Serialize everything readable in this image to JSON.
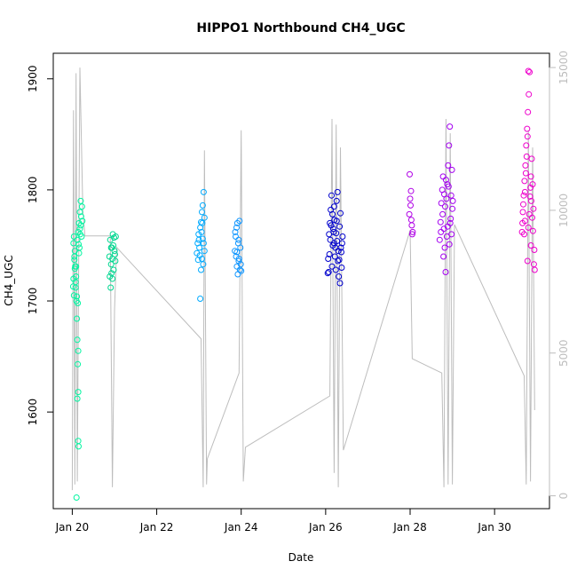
{
  "chart_data": {
    "type": "scatter",
    "title": "HIPPO1 Northbound CH4_UGC",
    "xlabel": "Date",
    "ylabel": "CH4_UGC",
    "x_ticks": [
      "Jan 20",
      "Jan 22",
      "Jan 24",
      "Jan 26",
      "Jan 28",
      "Jan 30"
    ],
    "x_tick_days": [
      20,
      22,
      24,
      26,
      28,
      30
    ],
    "xlim_days": [
      19.55,
      31.3
    ],
    "ylim": [
      1513,
      1923
    ],
    "y_ticks": [
      1600,
      1700,
      1800,
      1900
    ],
    "secondary_y": {
      "color": "#bdbdbd",
      "ylim": [
        -450,
        15500
      ],
      "ticks": [
        0,
        5000,
        10000,
        15000
      ],
      "series": "altitude",
      "trace": [
        [
          20.0,
          200
        ],
        [
          20.03,
          13500
        ],
        [
          20.06,
          400
        ],
        [
          20.09,
          14800
        ],
        [
          20.12,
          500
        ],
        [
          20.18,
          15000
        ],
        [
          20.25,
          10000
        ],
        [
          20.3,
          9100
        ],
        [
          20.6,
          9100
        ],
        [
          20.9,
          9100
        ],
        [
          20.95,
          300
        ],
        [
          21.0,
          6500
        ],
        [
          21.05,
          8700
        ],
        [
          23.05,
          5500
        ],
        [
          23.1,
          300
        ],
        [
          23.13,
          12100
        ],
        [
          23.18,
          400
        ],
        [
          23.2,
          1300
        ],
        [
          23.95,
          4300
        ],
        [
          24.0,
          12800
        ],
        [
          24.05,
          500
        ],
        [
          24.1,
          1700
        ],
        [
          26.1,
          3500
        ],
        [
          26.15,
          13200
        ],
        [
          26.2,
          800
        ],
        [
          26.25,
          13000
        ],
        [
          26.3,
          300
        ],
        [
          26.35,
          12200
        ],
        [
          26.42,
          1600
        ],
        [
          28.0,
          9300
        ],
        [
          28.05,
          4800
        ],
        [
          28.75,
          4300
        ],
        [
          28.8,
          300
        ],
        [
          28.85,
          13200
        ],
        [
          28.9,
          400
        ],
        [
          28.95,
          12700
        ],
        [
          29.0,
          400
        ],
        [
          29.05,
          9500
        ],
        [
          30.7,
          4200
        ],
        [
          30.75,
          400
        ],
        [
          30.8,
          12800
        ],
        [
          30.85,
          500
        ],
        [
          30.9,
          12200
        ],
        [
          30.95,
          3000
        ]
      ]
    },
    "series": [
      {
        "color": "#00f5a0",
        "values": [
          [
            20.02,
            1713
          ],
          [
            20.03,
            1720
          ],
          [
            20.04,
            1705
          ],
          [
            20.05,
            1737
          ],
          [
            20.06,
            1745
          ],
          [
            20.07,
            1731
          ],
          [
            20.08,
            1712
          ],
          [
            20.09,
            1722
          ],
          [
            20.1,
            1700
          ],
          [
            20.11,
            1684
          ],
          [
            20.12,
            1665
          ],
          [
            20.13,
            1643
          ],
          [
            20.14,
            1618
          ],
          [
            20.14,
            1574
          ],
          [
            20.15,
            1569
          ],
          [
            20.1,
            1523
          ],
          [
            20.12,
            1755
          ],
          [
            20.14,
            1762
          ],
          [
            20.16,
            1770
          ],
          [
            20.18,
            1780
          ],
          [
            20.2,
            1790
          ],
          [
            20.22,
            1758
          ],
          [
            20.24,
            1772
          ],
          [
            20.09,
            1731
          ],
          [
            20.11,
            1704
          ],
          [
            20.17,
            1748
          ],
          [
            20.19,
            1760
          ],
          [
            20.03,
            1752
          ],
          [
            20.05,
            1740
          ],
          [
            20.13,
            1698
          ],
          [
            20.21,
            1776
          ],
          [
            20.23,
            1785
          ],
          [
            20.06,
            1729
          ],
          [
            20.08,
            1717
          ],
          [
            20.15,
            1751
          ],
          [
            20.18,
            1765
          ],
          [
            20.04,
            1758
          ],
          [
            20.16,
            1743
          ],
          [
            20.2,
            1768
          ],
          [
            20.12,
            1612
          ],
          [
            20.14,
            1655
          ]
        ]
      },
      {
        "color": "#00d790",
        "values": [
          [
            20.88,
            1740
          ],
          [
            20.9,
            1755
          ],
          [
            20.92,
            1733
          ],
          [
            20.94,
            1748
          ],
          [
            20.96,
            1760
          ],
          [
            20.98,
            1728
          ],
          [
            21.0,
            1745
          ],
          [
            21.02,
            1736
          ],
          [
            20.91,
            1712
          ],
          [
            20.93,
            1725
          ],
          [
            20.95,
            1738
          ],
          [
            20.97,
            1750
          ],
          [
            20.99,
            1757
          ],
          [
            21.01,
            1742
          ],
          [
            20.89,
            1722
          ],
          [
            21.03,
            1758
          ],
          [
            20.95,
            1720
          ],
          [
            20.92,
            1748
          ]
        ]
      },
      {
        "color": "#00aaff",
        "values": [
          [
            22.95,
            1743
          ],
          [
            22.97,
            1752
          ],
          [
            22.99,
            1760
          ],
          [
            23.01,
            1748
          ],
          [
            23.03,
            1766
          ],
          [
            23.05,
            1771
          ],
          [
            23.07,
            1780
          ],
          [
            23.09,
            1786
          ],
          [
            23.11,
            1798
          ],
          [
            23.13,
            1775
          ],
          [
            23.03,
            1702
          ],
          [
            23.05,
            1728
          ],
          [
            23.07,
            1738
          ],
          [
            23.09,
            1756
          ],
          [
            23.11,
            1752
          ],
          [
            23.13,
            1745
          ],
          [
            22.98,
            1737
          ],
          [
            23.0,
            1755
          ],
          [
            23.02,
            1741
          ],
          [
            23.06,
            1762
          ],
          [
            23.1,
            1733
          ],
          [
            23.08,
            1770
          ]
        ]
      },
      {
        "color": "#1096ff",
        "values": [
          [
            23.85,
            1745
          ],
          [
            23.87,
            1758
          ],
          [
            23.89,
            1766
          ],
          [
            23.91,
            1770
          ],
          [
            23.93,
            1752
          ],
          [
            23.95,
            1738
          ],
          [
            23.97,
            1728
          ],
          [
            23.99,
            1733
          ],
          [
            23.88,
            1740
          ],
          [
            23.9,
            1731
          ],
          [
            23.92,
            1724
          ],
          [
            23.94,
            1755
          ],
          [
            23.96,
            1772
          ],
          [
            23.98,
            1748
          ],
          [
            23.86,
            1762
          ],
          [
            23.9,
            1744
          ],
          [
            23.94,
            1736
          ],
          [
            24.0,
            1727
          ]
        ]
      },
      {
        "color": "#0000cc",
        "values": [
          [
            26.05,
            1725
          ],
          [
            26.08,
            1760
          ],
          [
            26.1,
            1770
          ],
          [
            26.12,
            1782
          ],
          [
            26.14,
            1795
          ],
          [
            26.16,
            1778
          ],
          [
            26.18,
            1765
          ],
          [
            26.2,
            1752
          ],
          [
            26.22,
            1740
          ],
          [
            26.24,
            1728
          ],
          [
            26.26,
            1790
          ],
          [
            26.28,
            1798
          ],
          [
            26.3,
            1745
          ],
          [
            26.32,
            1737
          ],
          [
            26.34,
            1716
          ],
          [
            26.36,
            1748
          ],
          [
            26.38,
            1730
          ],
          [
            26.4,
            1758
          ],
          [
            26.09,
            1742
          ],
          [
            26.11,
            1755
          ],
          [
            26.13,
            1768
          ],
          [
            26.15,
            1731
          ],
          [
            26.17,
            1750
          ],
          [
            26.19,
            1762
          ],
          [
            26.21,
            1773
          ],
          [
            26.23,
            1748
          ],
          [
            26.25,
            1761
          ],
          [
            26.27,
            1754
          ],
          [
            26.29,
            1736
          ],
          [
            26.31,
            1722
          ],
          [
            26.33,
            1767
          ],
          [
            26.35,
            1779
          ],
          [
            26.07,
            1726
          ],
          [
            26.37,
            1744
          ],
          [
            26.39,
            1752
          ],
          [
            26.06,
            1738
          ],
          [
            26.2,
            1785
          ],
          [
            26.26,
            1772
          ]
        ]
      },
      {
        "color": "#b000e6",
        "values": [
          [
            27.98,
            1778
          ],
          [
            28.0,
            1792
          ],
          [
            28.02,
            1799
          ],
          [
            28.04,
            1768
          ],
          [
            28.06,
            1762
          ],
          [
            27.99,
            1814
          ],
          [
            28.01,
            1786
          ],
          [
            28.03,
            1773
          ],
          [
            28.05,
            1760
          ]
        ]
      },
      {
        "color": "#a400f0",
        "values": [
          [
            28.7,
            1755
          ],
          [
            28.72,
            1771
          ],
          [
            28.74,
            1788
          ],
          [
            28.76,
            1800
          ],
          [
            28.78,
            1812
          ],
          [
            28.8,
            1765
          ],
          [
            28.82,
            1748
          ],
          [
            28.84,
            1726
          ],
          [
            28.86,
            1792
          ],
          [
            28.88,
            1805
          ],
          [
            28.9,
            1822
          ],
          [
            28.92,
            1840
          ],
          [
            28.94,
            1857
          ],
          [
            28.96,
            1774
          ],
          [
            28.98,
            1760
          ],
          [
            29.0,
            1783
          ],
          [
            28.73,
            1762
          ],
          [
            28.77,
            1778
          ],
          [
            28.81,
            1796
          ],
          [
            28.85,
            1809
          ],
          [
            28.89,
            1767
          ],
          [
            28.93,
            1751
          ],
          [
            28.97,
            1795
          ],
          [
            28.79,
            1740
          ],
          [
            28.83,
            1785
          ],
          [
            28.87,
            1758
          ],
          [
            28.91,
            1803
          ],
          [
            28.95,
            1770
          ],
          [
            28.99,
            1818
          ],
          [
            29.01,
            1790
          ]
        ]
      },
      {
        "color": "#ee00cc",
        "values": [
          [
            30.65,
            1762
          ],
          [
            30.67,
            1780
          ],
          [
            30.69,
            1795
          ],
          [
            30.71,
            1808
          ],
          [
            30.73,
            1822
          ],
          [
            30.75,
            1840
          ],
          [
            30.77,
            1855
          ],
          [
            30.79,
            1870
          ],
          [
            30.81,
            1886
          ],
          [
            30.83,
            1906
          ],
          [
            30.85,
            1802
          ],
          [
            30.87,
            1790
          ],
          [
            30.89,
            1775
          ],
          [
            30.91,
            1763
          ],
          [
            30.93,
            1733
          ],
          [
            30.95,
            1728
          ],
          [
            30.66,
            1770
          ],
          [
            30.68,
            1787
          ],
          [
            30.7,
            1760
          ],
          [
            30.72,
            1798
          ],
          [
            30.74,
            1815
          ],
          [
            30.76,
            1830
          ],
          [
            30.78,
            1848
          ],
          [
            30.8,
            1766
          ],
          [
            30.82,
            1778
          ],
          [
            30.84,
            1794
          ],
          [
            30.86,
            1812
          ],
          [
            30.88,
            1828
          ],
          [
            30.9,
            1805
          ],
          [
            30.92,
            1783
          ],
          [
            30.8,
            1907
          ],
          [
            30.94,
            1746
          ],
          [
            30.78,
            1736
          ],
          [
            30.86,
            1750
          ],
          [
            30.72,
            1772
          ]
        ]
      }
    ]
  }
}
